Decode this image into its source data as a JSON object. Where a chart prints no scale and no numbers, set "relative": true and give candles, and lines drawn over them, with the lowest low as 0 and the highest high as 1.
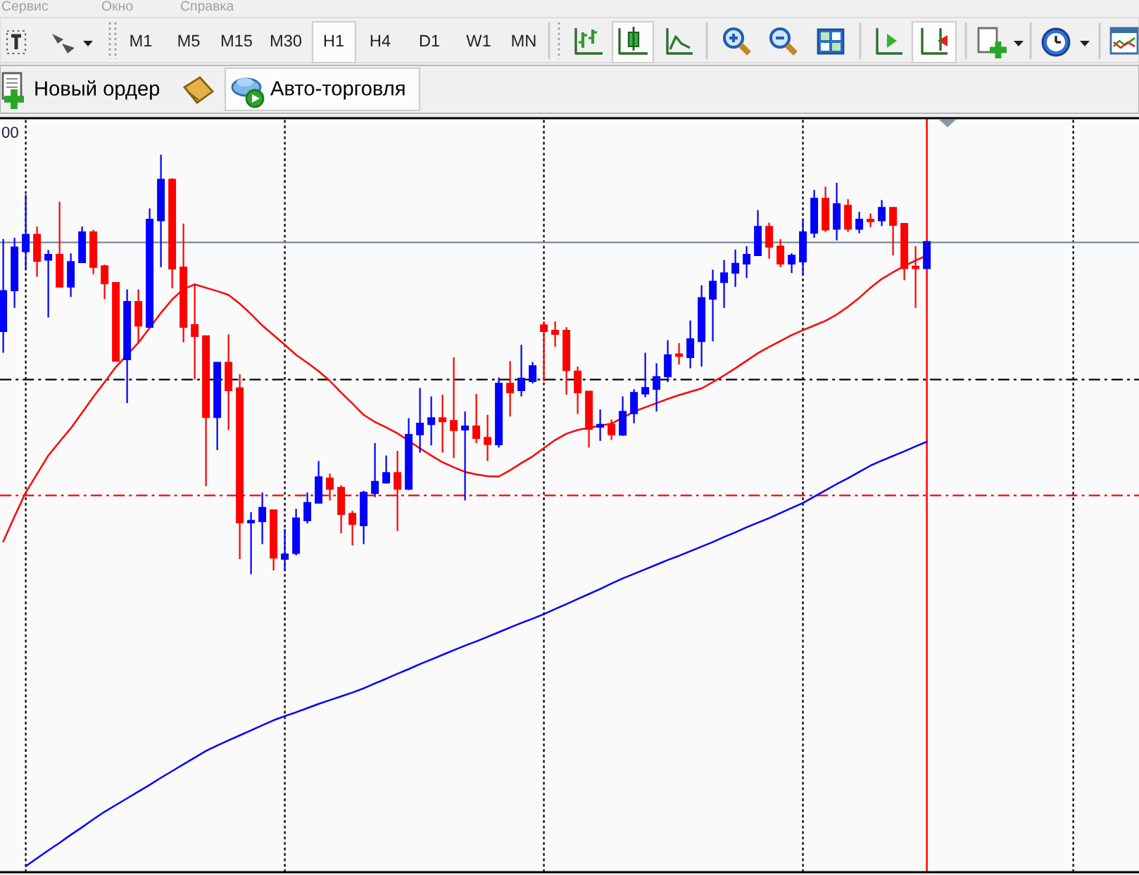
{
  "chart_data": {
    "type": "candlestick",
    "relative": true,
    "tick_labels": false,
    "grid": "x",
    "categories": [
      null,
      null,
      null,
      null,
      null,
      null,
      null,
      null,
      null,
      null,
      null,
      null,
      null,
      null,
      null,
      null,
      null,
      null,
      null,
      null,
      null,
      null,
      null,
      null,
      null,
      null,
      null,
      null,
      null,
      null,
      null,
      null,
      null,
      null,
      null,
      null,
      null,
      null,
      null,
      null,
      null,
      null,
      null,
      null,
      null,
      null,
      null,
      null,
      null,
      null,
      null,
      null,
      null,
      null,
      null,
      null,
      null,
      null,
      null,
      null,
      null,
      null,
      null,
      null,
      null,
      null,
      null,
      null,
      null,
      null,
      null,
      null,
      null,
      null,
      null,
      null,
      null,
      null,
      null,
      null,
      null,
      null,
      null
    ],
    "ohlc": [
      [
        0.579,
        0.799,
        0.528,
        0.676
      ],
      [
        0.676,
        0.802,
        0.635,
        0.78
      ],
      [
        0.769,
        0.905,
        0.728,
        0.81
      ],
      [
        0.81,
        0.829,
        0.709,
        0.746
      ],
      [
        0.749,
        0.773,
        0.612,
        0.762
      ],
      [
        0.762,
        0.888,
        0.685,
        0.685
      ],
      [
        0.685,
        0.765,
        0.661,
        0.745
      ],
      [
        0.743,
        0.829,
        0.743,
        0.816
      ],
      [
        0.816,
        0.821,
        0.715,
        0.732
      ],
      [
        0.735,
        0.738,
        0.656,
        0.693
      ],
      [
        0.695,
        0.695,
        0.508,
        0.508
      ],
      [
        0.512,
        0.679,
        0.408,
        0.65
      ],
      [
        0.65,
        0.679,
        0.55,
        0.592
      ],
      [
        0.589,
        0.872,
        0.589,
        0.846
      ],
      [
        0.843,
        1.0,
        0.732,
        0.941
      ],
      [
        0.941,
        0.944,
        0.682,
        0.728
      ],
      [
        0.732,
        0.836,
        0.553,
        0.589
      ],
      [
        0.595,
        0.693,
        0.464,
        0.567
      ],
      [
        0.568,
        0.568,
        0.21,
        0.374
      ],
      [
        0.374,
        0.505,
        0.296,
        0.505
      ],
      [
        0.505,
        0.572,
        0.344,
        0.438
      ],
      [
        0.444,
        0.477,
        0.036,
        0.123
      ],
      [
        0.123,
        0.148,
        0.0,
        0.128
      ],
      [
        0.126,
        0.195,
        0.072,
        0.159
      ],
      [
        0.153,
        0.153,
        0.009,
        0.039
      ],
      [
        0.036,
        0.108,
        0.009,
        0.048
      ],
      [
        0.05,
        0.156,
        0.045,
        0.134
      ],
      [
        0.128,
        0.195,
        0.121,
        0.171
      ],
      [
        0.17,
        0.27,
        0.17,
        0.232
      ],
      [
        0.229,
        0.24,
        0.176,
        0.203
      ],
      [
        0.207,
        0.212,
        0.098,
        0.143
      ],
      [
        0.145,
        0.151,
        0.069,
        0.119
      ],
      [
        0.116,
        0.199,
        0.072,
        0.195
      ],
      [
        0.193,
        0.313,
        0.184,
        0.221
      ],
      [
        0.218,
        0.283,
        0.216,
        0.242
      ],
      [
        0.242,
        0.294,
        0.103,
        0.203
      ],
      [
        0.203,
        0.372,
        0.201,
        0.333
      ],
      [
        0.333,
        0.444,
        0.29,
        0.36
      ],
      [
        0.357,
        0.424,
        0.307,
        0.373
      ],
      [
        0.373,
        0.428,
        0.29,
        0.364
      ],
      [
        0.366,
        0.517,
        0.277,
        0.343
      ],
      [
        0.344,
        0.388,
        0.176,
        0.353
      ],
      [
        0.353,
        0.43,
        0.313,
        0.324
      ],
      [
        0.326,
        0.38,
        0.27,
        0.31
      ],
      [
        0.309,
        0.469,
        0.302,
        0.455
      ],
      [
        0.455,
        0.508,
        0.376,
        0.433
      ],
      [
        0.438,
        0.547,
        0.424,
        0.467
      ],
      [
        0.46,
        0.506,
        0.455,
        0.497
      ],
      [
        0.594,
        0.603,
        0.46,
        0.579
      ],
      [
        0.581,
        0.603,
        0.542,
        0.572
      ],
      [
        0.581,
        0.589,
        0.428,
        0.486
      ],
      [
        0.484,
        0.495,
        0.382,
        0.433
      ],
      [
        0.436,
        0.436,
        0.302,
        0.346
      ],
      [
        0.351,
        0.393,
        0.318,
        0.357
      ],
      [
        0.357,
        0.369,
        0.32,
        0.333
      ],
      [
        0.332,
        0.424,
        0.33,
        0.388
      ],
      [
        0.383,
        0.441,
        0.36,
        0.433
      ],
      [
        0.43,
        0.528,
        0.422,
        0.445
      ],
      [
        0.441,
        0.503,
        0.388,
        0.471
      ],
      [
        0.471,
        0.558,
        0.458,
        0.523
      ],
      [
        0.525,
        0.551,
        0.5,
        0.52
      ],
      [
        0.517,
        0.605,
        0.491,
        0.561
      ],
      [
        0.555,
        0.689,
        0.495,
        0.659
      ],
      [
        0.656,
        0.726,
        0.555,
        0.698
      ],
      [
        0.696,
        0.749,
        0.635,
        0.718
      ],
      [
        0.718,
        0.774,
        0.685,
        0.741
      ],
      [
        0.74,
        0.782,
        0.706,
        0.762
      ],
      [
        0.76,
        0.868,
        0.76,
        0.829
      ],
      [
        0.829,
        0.838,
        0.752,
        0.78
      ],
      [
        0.782,
        0.799,
        0.732,
        0.74
      ],
      [
        0.74,
        0.765,
        0.718,
        0.76
      ],
      [
        0.745,
        0.843,
        0.715,
        0.816
      ],
      [
        0.813,
        0.916,
        0.802,
        0.896
      ],
      [
        0.896,
        0.924,
        0.816,
        0.821
      ],
      [
        0.823,
        0.933,
        0.796,
        0.883
      ],
      [
        0.879,
        0.894,
        0.816,
        0.823
      ],
      [
        0.823,
        0.864,
        0.813,
        0.846
      ],
      [
        0.846,
        0.86,
        0.827,
        0.841
      ],
      [
        0.843,
        0.892,
        0.83,
        0.874
      ],
      [
        0.874,
        0.874,
        0.76,
        0.832
      ],
      [
        0.836,
        0.836,
        0.701,
        0.729
      ],
      [
        0.734,
        0.782,
        0.635,
        0.729
      ],
      [
        0.729,
        0.793,
        0.729,
        0.793
      ]
    ],
    "colors": [
      "#0000ff",
      "#0000ff",
      "#0000ff",
      "#ff0000",
      "#0000ff",
      "#ff0000",
      "#0000ff",
      "#0000ff",
      "#ff0000",
      "#ff0000",
      "#ff0000",
      "#0000ff",
      "#ff0000",
      "#0000ff",
      "#0000ff",
      "#ff0000",
      "#ff0000",
      "#ff0000",
      "#ff0000",
      "#0000ff",
      "#ff0000",
      "#ff0000",
      "#0000ff",
      "#0000ff",
      "#ff0000",
      "#0000ff",
      "#0000ff",
      "#0000ff",
      "#0000ff",
      "#ff0000",
      "#ff0000",
      "#ff0000",
      "#0000ff",
      "#0000ff",
      "#0000ff",
      "#ff0000",
      "#0000ff",
      "#0000ff",
      "#0000ff",
      "#ff0000",
      "#ff0000",
      "#0000ff",
      "#ff0000",
      "#ff0000",
      "#0000ff",
      "#ff0000",
      "#0000ff",
      "#0000ff",
      "#ff0000",
      "#ff0000",
      "#ff0000",
      "#ff0000",
      "#ff0000",
      "#0000ff",
      "#ff0000",
      "#0000ff",
      "#0000ff",
      "#0000ff",
      "#0000ff",
      "#0000ff",
      "#ff0000",
      "#0000ff",
      "#0000ff",
      "#0000ff",
      "#0000ff",
      "#0000ff",
      "#0000ff",
      "#0000ff",
      "#ff0000",
      "#ff0000",
      "#0000ff",
      "#0000ff",
      "#0000ff",
      "#ff0000",
      "#0000ff",
      "#ff0000",
      "#0000ff",
      "#ff0000",
      "#0000ff",
      "#ff0000",
      "#ff0000",
      "#ff0000",
      "#0000ff"
    ],
    "series": [
      {
        "type": "line",
        "color": "#ff0000",
        "values": [
          0.078,
          0.138,
          0.195,
          0.239,
          0.283,
          0.316,
          0.348,
          0.385,
          0.423,
          0.458,
          0.494,
          0.523,
          0.552,
          0.587,
          0.623,
          0.655,
          0.68,
          0.691,
          0.683,
          0.675,
          0.666,
          0.645,
          0.62,
          0.593,
          0.57,
          0.547,
          0.523,
          0.504,
          0.484,
          0.461,
          0.433,
          0.407,
          0.38,
          0.363,
          0.35,
          0.336,
          0.318,
          0.3,
          0.283,
          0.267,
          0.255,
          0.244,
          0.238,
          0.234,
          0.233,
          0.248,
          0.265,
          0.281,
          0.301,
          0.32,
          0.335,
          0.344,
          0.349,
          0.354,
          0.359,
          0.373,
          0.388,
          0.398,
          0.408,
          0.418,
          0.427,
          0.435,
          0.443,
          0.458,
          0.474,
          0.491,
          0.509,
          0.527,
          0.542,
          0.556,
          0.57,
          0.582,
          0.593,
          0.604,
          0.619,
          0.638,
          0.659,
          0.683,
          0.704,
          0.72,
          0.735,
          0.748,
          0.76
        ]
      },
      {
        "type": "line",
        "color": "#0000ff",
        "values": [
          null,
          null,
          -0.696,
          -0.677,
          -0.658,
          -0.64,
          -0.621,
          -0.603,
          -0.584,
          -0.566,
          -0.55,
          -0.534,
          -0.518,
          -0.502,
          -0.485,
          -0.469,
          -0.453,
          -0.437,
          -0.421,
          -0.408,
          -0.396,
          -0.384,
          -0.372,
          -0.36,
          -0.348,
          -0.338,
          -0.329,
          -0.319,
          -0.309,
          -0.3,
          -0.291,
          -0.282,
          -0.272,
          -0.26,
          -0.249,
          -0.237,
          -0.226,
          -0.214,
          -0.203,
          -0.192,
          -0.181,
          -0.17,
          -0.16,
          -0.149,
          -0.138,
          -0.127,
          -0.116,
          -0.106,
          -0.095,
          -0.083,
          -0.071,
          -0.059,
          -0.047,
          -0.035,
          -0.022,
          -0.01,
          0.001,
          0.012,
          0.023,
          0.034,
          0.044,
          0.055,
          0.066,
          0.077,
          0.089,
          0.1,
          0.112,
          0.123,
          0.134,
          0.146,
          0.158,
          0.17,
          0.185,
          0.2,
          0.215,
          0.229,
          0.244,
          0.259,
          0.271,
          0.282,
          0.293,
          0.305,
          0.316
        ]
      }
    ],
    "ref_lines": [
      {
        "axis": "y",
        "value": 0.464,
        "color": "#000000",
        "line_style": "dashed"
      },
      {
        "axis": "y",
        "value": 0.188,
        "color": "#ff0000",
        "line_style": "dashed"
      },
      {
        "axis": "y",
        "value": 0.791,
        "color": "#778899",
        "line_style": "solid"
      }
    ],
    "annotations": [
      "Сервис",
      "Окно",
      "Справка",
      "M1",
      "M5",
      "M15",
      "M30",
      "H1",
      "H4",
      "D1",
      "W1",
      "MN",
      "Новый ордер",
      "Авто-торговля",
      "00"
    ]
  }
}
